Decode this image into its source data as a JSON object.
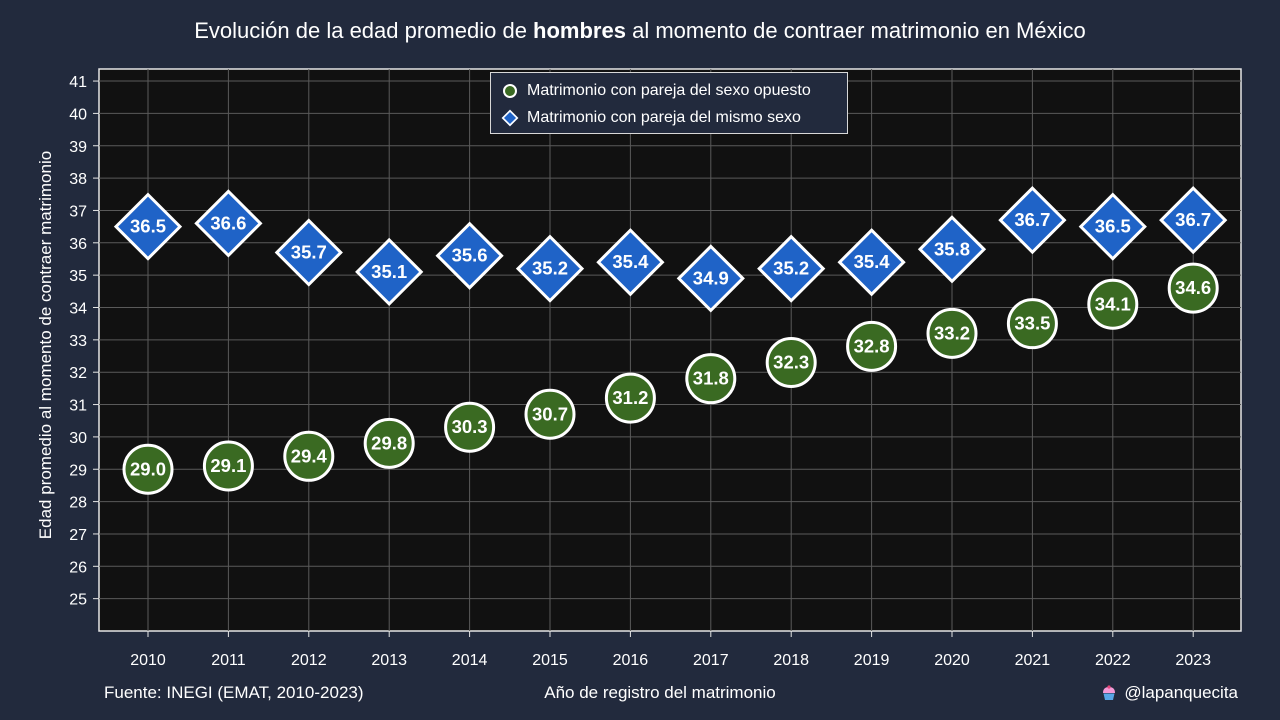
{
  "title": {
    "pre": "Evolución de la edad promedio de ",
    "bold": "hombres",
    "post": " al momento de contraer matrimonio en México"
  },
  "footer": {
    "source": "Fuente: INEGI (EMAT, 2010-2023)",
    "credit": "@lapanquecita"
  },
  "colors": {
    "background": "#222a3d",
    "plot_background": "#111111",
    "opposite_sex": "#3a6a22",
    "same_sex": "#1f63c7"
  },
  "chart_data": {
    "type": "scatter",
    "xlabel": "Año de registro del matrimonio",
    "ylabel": "Edad promedio al momento de contraer matrimonio",
    "x": [
      2010,
      2011,
      2012,
      2013,
      2014,
      2015,
      2016,
      2017,
      2018,
      2019,
      2020,
      2021,
      2022,
      2023
    ],
    "ylim": [
      24,
      42
    ],
    "yticks": [
      25,
      26,
      27,
      28,
      29,
      30,
      31,
      32,
      33,
      34,
      35,
      36,
      37,
      38,
      39,
      40,
      41
    ],
    "grid": true,
    "legend_position": "top-center",
    "series": [
      {
        "name": "Matrimonio con pareja del sexo opuesto",
        "marker": "circle",
        "color": "#3a6a22",
        "values": [
          29.0,
          29.1,
          29.4,
          29.8,
          30.3,
          30.7,
          31.2,
          31.8,
          32.3,
          32.8,
          33.2,
          33.5,
          34.1,
          34.6
        ],
        "labels": [
          "29.0",
          "29.1",
          "29.4",
          "29.8",
          "30.3",
          "30.7",
          "31.2",
          "31.8",
          "32.3",
          "32.8",
          "33.2",
          "33.5",
          "34.1",
          "34.6"
        ]
      },
      {
        "name": "Matrimonio con pareja del mismo sexo",
        "marker": "diamond",
        "color": "#1f63c7",
        "values": [
          36.5,
          36.6,
          35.7,
          35.1,
          35.6,
          35.2,
          35.4,
          34.9,
          35.2,
          35.4,
          35.8,
          36.7,
          36.5,
          36.7
        ],
        "labels": [
          "36.5",
          "36.6",
          "35.7",
          "35.1",
          "35.6",
          "35.2",
          "35.4",
          "34.9",
          "35.2",
          "35.4",
          "35.8",
          "36.7",
          "36.5",
          "36.7"
        ]
      }
    ]
  }
}
